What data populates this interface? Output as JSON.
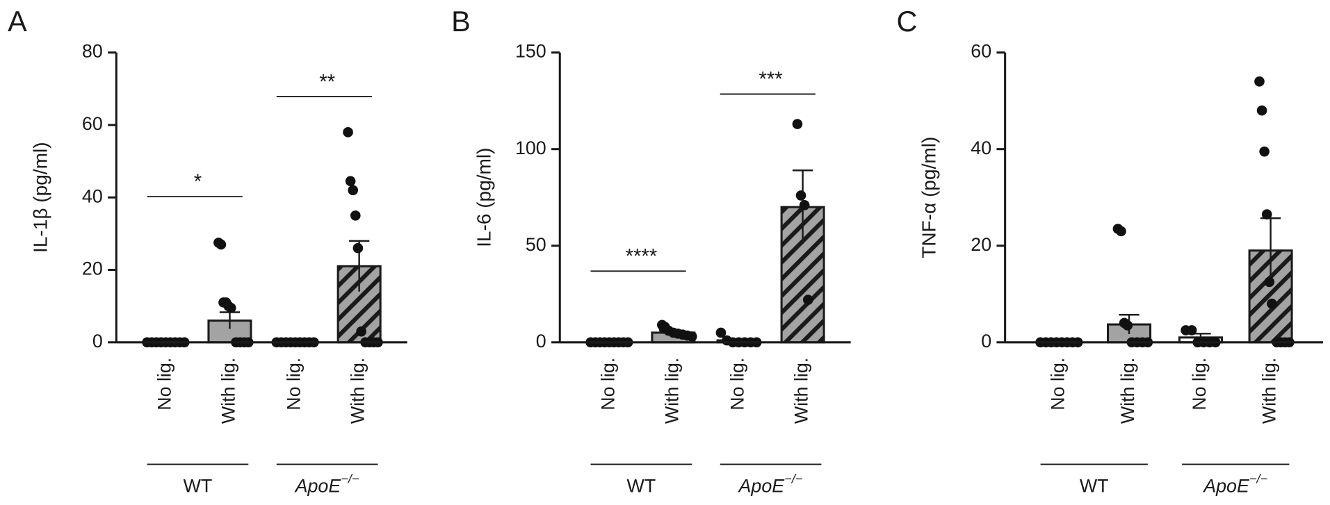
{
  "chart_data": [
    {
      "type": "bar",
      "panel_label": "A",
      "y_label": "IL-1β (pg/ml)",
      "categories": [
        "No lig.",
        "With lig.",
        "No lig.",
        "With lig."
      ],
      "values": [
        0.2,
        6,
        0.2,
        21
      ],
      "errors": [
        0,
        2.3,
        0,
        7
      ],
      "points": [
        [
          0,
          0,
          0,
          0,
          0,
          0,
          0,
          0,
          0
        ],
        [
          27.5,
          27,
          11,
          11,
          10,
          9.5,
          0,
          0,
          0,
          0
        ],
        [
          0,
          0,
          0,
          0,
          0,
          0,
          0,
          0,
          0
        ],
        [
          58,
          44.5,
          42,
          35,
          26,
          3,
          0,
          0,
          0,
          0
        ]
      ],
      "colors": [
        "#ffffff",
        "#a3a3a3",
        "#ffffff",
        "#a3a3a3"
      ],
      "hatched": [
        false,
        false,
        false,
        true
      ],
      "groups": [
        {
          "label": "WT"
        },
        {
          "label": "ApoE",
          "superscript": "−/−"
        }
      ],
      "significance": [
        "*",
        "**"
      ],
      "ylim": [
        0,
        80
      ],
      "yticks": [
        0,
        20,
        40,
        60,
        80
      ]
    },
    {
      "type": "bar",
      "panel_label": "B",
      "y_label": "IL-6 (pg/ml)",
      "categories": [
        "No lig.",
        "With lig.",
        "No lig.",
        "With lig."
      ],
      "values": [
        0.5,
        5,
        1,
        70
      ],
      "errors": [
        0.3,
        1,
        0.8,
        19
      ],
      "points": [
        [
          0,
          0,
          0,
          0,
          0,
          0,
          0,
          0,
          0
        ],
        [
          9,
          8,
          7,
          6,
          5,
          4.5,
          4,
          3.5,
          3
        ],
        [
          5,
          1,
          0,
          0,
          0,
          0,
          0
        ],
        [
          113,
          76,
          71,
          22
        ]
      ],
      "colors": [
        "#ffffff",
        "#a3a3a3",
        "#ffffff",
        "#a3a3a3"
      ],
      "hatched": [
        false,
        false,
        false,
        true
      ],
      "groups": [
        {
          "label": "WT"
        },
        {
          "label": "ApoE",
          "superscript": "−/−"
        }
      ],
      "significance": [
        "****",
        "***"
      ],
      "ylim": [
        0,
        150
      ],
      "yticks": [
        0,
        50,
        100,
        150
      ]
    },
    {
      "type": "bar",
      "panel_label": "C",
      "y_label": "TNF-α (pg/ml)",
      "categories": [
        "No lig.",
        "With lig.",
        "No lig.",
        "With lig."
      ],
      "values": [
        0.3,
        3.7,
        1,
        19
      ],
      "errors": [
        0,
        2,
        0.8,
        6.7
      ],
      "points": [
        [
          0,
          0,
          0,
          0,
          0,
          0,
          0,
          0
        ],
        [
          23.5,
          23,
          4,
          3.5,
          0,
          0,
          0,
          0
        ],
        [
          2.5,
          2.5,
          0,
          0,
          0,
          0
        ],
        [
          54,
          48,
          39.5,
          26.5,
          12.5,
          8,
          0,
          0,
          0,
          0
        ]
      ],
      "colors": [
        "#ffffff",
        "#a3a3a3",
        "#ffffff",
        "#a3a3a3"
      ],
      "hatched": [
        false,
        false,
        false,
        true
      ],
      "groups": [
        {
          "label": "WT"
        },
        {
          "label": "ApoE",
          "superscript": "−/−"
        }
      ],
      "ylim": [
        0,
        60
      ],
      "yticks": [
        0,
        20,
        40,
        60
      ]
    }
  ]
}
